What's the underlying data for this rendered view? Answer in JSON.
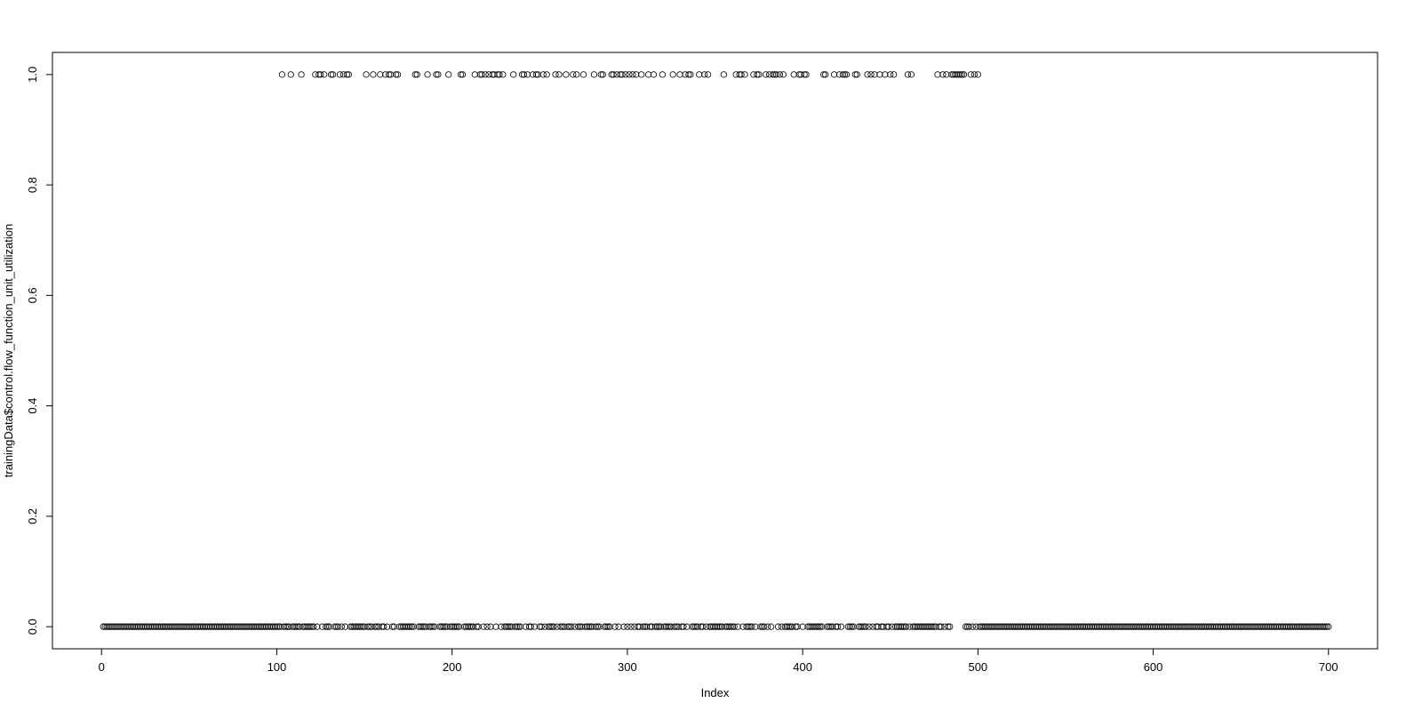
{
  "chart_data": {
    "type": "scatter",
    "title": "",
    "xlabel": "Index",
    "ylabel": "trainingData$control.flow_function_unit_utilization",
    "xlim": [
      -28,
      728
    ],
    "ylim": [
      -0.04,
      1.04
    ],
    "x_ticks": [
      0,
      100,
      200,
      300,
      400,
      500,
      600,
      700
    ],
    "y_ticks": [
      0.0,
      0.2,
      0.4,
      0.6,
      0.8,
      1.0
    ],
    "x_tick_labels": [
      "0",
      "100",
      "200",
      "300",
      "400",
      "500",
      "600",
      "700"
    ],
    "y_tick_labels": [
      "0.0",
      "0.2",
      "0.4",
      "0.6",
      "0.8",
      "1.0"
    ],
    "grid": false,
    "legend": "none",
    "marker": "open-circle",
    "colors": {
      "marker_stroke": "#000000",
      "axis": "#000000",
      "background": "#ffffff"
    },
    "n_points": 700,
    "x": "1..700",
    "ones_at_index": [
      103,
      108,
      114,
      122,
      124,
      125,
      127,
      131,
      132,
      136,
      138,
      140,
      141,
      151,
      155,
      159,
      162,
      164,
      165,
      168,
      169,
      179,
      180,
      186,
      191,
      192,
      198,
      205,
      206,
      213,
      216,
      217,
      219,
      221,
      223,
      224,
      226,
      227,
      229,
      235,
      240,
      241,
      243,
      246,
      248,
      249,
      252,
      254,
      259,
      261,
      265,
      269,
      271,
      275,
      281,
      285,
      286,
      291,
      292,
      294,
      296,
      297,
      299,
      301,
      303,
      305,
      308,
      312,
      315,
      320,
      326,
      330,
      333,
      335,
      336,
      341,
      344,
      346,
      355,
      362,
      364,
      365,
      367,
      372,
      374,
      375,
      379,
      381,
      383,
      384,
      385,
      387,
      389,
      395,
      398,
      399,
      401,
      402,
      412,
      413,
      418,
      421,
      423,
      424,
      425,
      430,
      431,
      437,
      439,
      441,
      444,
      447,
      450,
      452,
      460,
      462,
      477,
      480,
      482,
      485,
      486,
      487,
      488,
      489,
      490,
      491,
      492,
      496,
      498,
      500
    ]
  }
}
